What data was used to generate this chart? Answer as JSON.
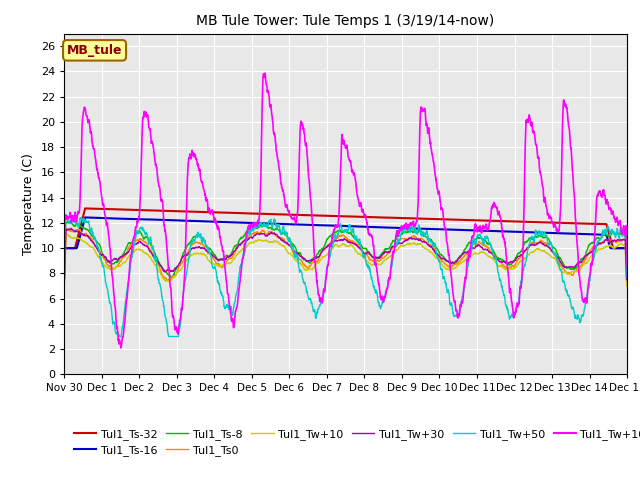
{
  "title": "MB Tule Tower: Tule Temps 1 (3/19/14-now)",
  "ylabel": "Temperature (C)",
  "ylim": [
    0,
    27
  ],
  "yticks": [
    0,
    2,
    4,
    6,
    8,
    10,
    12,
    14,
    16,
    18,
    20,
    22,
    24,
    26
  ],
  "xtick_labels": [
    "Nov 30",
    "Dec 1",
    "Dec 2",
    "Dec 3",
    "Dec 4",
    "Dec 5",
    "Dec 6",
    "Dec 7",
    "Dec 8",
    "Dec 9",
    "Dec 10",
    "Dec 11",
    "Dec 12",
    "Dec 13",
    "Dec 14",
    "Dec 15"
  ],
  "background_color": "#e8e8e8",
  "series_colors": {
    "Tul1_Ts-32": "#cc0000",
    "Tul1_Ts-16": "#0000cc",
    "Tul1_Ts-8": "#00bb00",
    "Tul1_Ts0": "#ff8800",
    "Tul1_Tw+10": "#cccc00",
    "Tul1_Tw+30": "#aa00aa",
    "Tul1_Tw+50": "#00cccc",
    "Tul1_Tw+100": "#ff00ff"
  },
  "legend_box_color": "#ffff99",
  "legend_box_label": "MB_tule",
  "legend_box_text_color": "#8b0000",
  "spike_days": [
    0.5,
    2.1,
    3.3,
    5.3,
    6.3,
    7.4,
    9.5,
    11.4,
    12.3,
    13.3,
    14.2
  ],
  "spike_heights": [
    21,
    21,
    19,
    24,
    20.5,
    19,
    22,
    14.5,
    22.5,
    23,
    16
  ]
}
